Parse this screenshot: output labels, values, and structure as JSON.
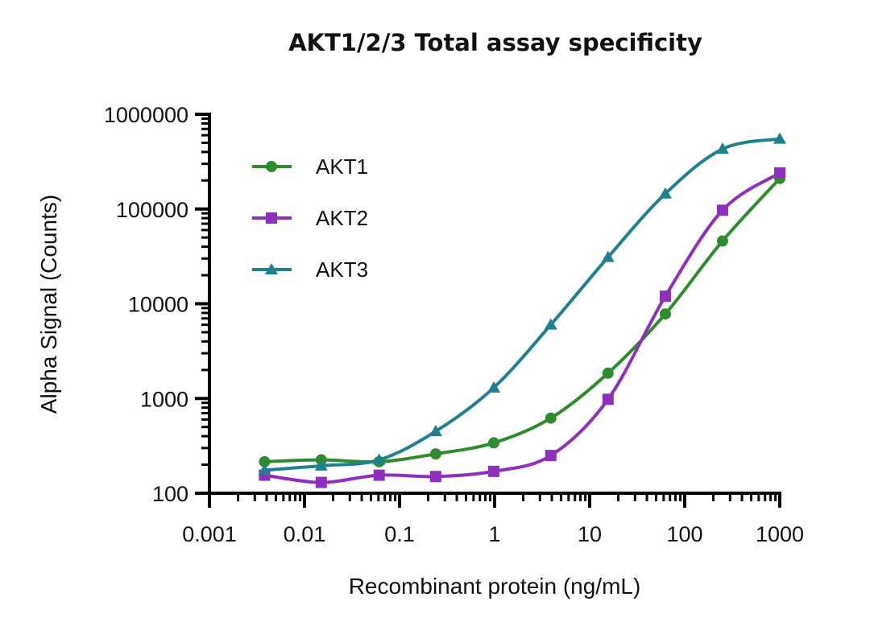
{
  "chart_data": {
    "type": "line",
    "title": "AKT1/2/3 Total assay specificity",
    "xlabel": "Recombinant protein (ng/mL)",
    "ylabel": "Alpha Signal (Counts)",
    "xscale": "log",
    "yscale": "log",
    "xlim": [
      0.001,
      1000
    ],
    "ylim": [
      100,
      1000000
    ],
    "x_ticks": [
      "0.001",
      "0.01",
      "0.1",
      "1",
      "10",
      "100",
      "1000"
    ],
    "y_ticks": [
      "100",
      "1000",
      "10000",
      "100000",
      "1000000"
    ],
    "legend_position": "top-left",
    "series": [
      {
        "name": "AKT1",
        "color": "#2e8b2e",
        "marker": "circle",
        "x": [
          0.0038,
          0.015,
          0.061,
          0.24,
          0.98,
          3.9,
          15.6,
          62.5,
          250,
          1000
        ],
        "y": [
          215,
          225,
          215,
          260,
          340,
          620,
          1850,
          7800,
          46000,
          210000
        ]
      },
      {
        "name": "AKT2",
        "color": "#8e2fc0",
        "marker": "square",
        "x": [
          0.0038,
          0.015,
          0.061,
          0.24,
          0.98,
          3.9,
          15.6,
          62.5,
          250,
          1000
        ],
        "y": [
          155,
          130,
          155,
          150,
          170,
          250,
          980,
          12000,
          97000,
          240000
        ]
      },
      {
        "name": "AKT3",
        "color": "#1f8090",
        "marker": "triangle",
        "x": [
          0.0038,
          0.015,
          0.061,
          0.24,
          0.98,
          3.9,
          15.6,
          62.5,
          250,
          1000
        ],
        "y": [
          175,
          195,
          225,
          450,
          1300,
          6000,
          31000,
          145000,
          430000,
          550000
        ]
      }
    ]
  }
}
